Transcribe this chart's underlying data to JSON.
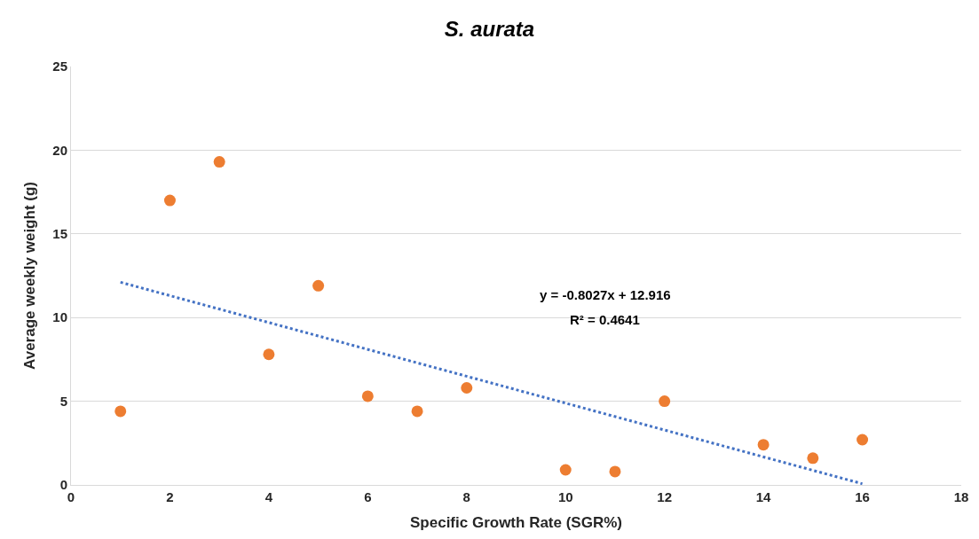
{
  "chart_data": {
    "type": "scatter",
    "title": "S. aurata",
    "xlabel": "Specific Growth Rate (SGR%)",
    "ylabel": "Average weekly weight (g)",
    "x": [
      1,
      2,
      3,
      4,
      5,
      6,
      7,
      8,
      10,
      11,
      12,
      14,
      15,
      16
    ],
    "series": [
      {
        "color": "#ed7d31",
        "marker": "circle",
        "values": [
          4.4,
          17.0,
          19.3,
          7.8,
          11.9,
          5.3,
          4.4,
          5.8,
          0.9,
          0.8,
          5.0,
          2.4,
          1.6,
          2.7
        ]
      },
      {
        "type": "line",
        "color": "#4472c4",
        "line_style": "dotted",
        "marker": "none",
        "x": [
          1,
          16
        ],
        "values": [
          12.11,
          0.07
        ]
      }
    ],
    "annotations": [
      "y = -0.8027x + 12.916",
      "R² = 0.4641"
    ],
    "xlim": [
      0,
      18
    ],
    "xticks": [
      0,
      2,
      4,
      6,
      8,
      10,
      12,
      14,
      16,
      18
    ],
    "ylim": [
      0,
      25
    ],
    "yticks": [
      0,
      5,
      10,
      15,
      20,
      25
    ],
    "grid": "y"
  }
}
